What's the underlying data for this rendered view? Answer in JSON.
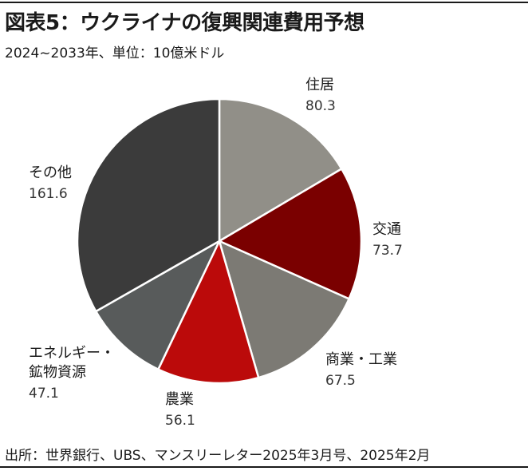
{
  "header": {
    "title": "図表5：ウクライナの復興関連費用予想",
    "subtitle": "2024~2033年、単位：10億米ドル"
  },
  "footer": {
    "source": "出所：世界銀行、UBS、マンスリーレター2025年3月号、2025年2月"
  },
  "chart_data": {
    "type": "pie",
    "start": "12 o'clock",
    "direction": "clockwise",
    "slices": [
      {
        "label": "住居",
        "value": 80.3,
        "display": "80.3",
        "color": "#918f88"
      },
      {
        "label": "交通",
        "value": 73.7,
        "display": "73.7",
        "color": "#7a0000"
      },
      {
        "label": "商業・工業",
        "value": 67.5,
        "display": "67.5",
        "color": "#7c7a74"
      },
      {
        "label": "農業",
        "value": 56.1,
        "display": "56.1",
        "color": "#bb0a0a"
      },
      {
        "label": "エネルギー・鉱物資源",
        "lines": [
          "エネルギー・",
          "鉱物資源"
        ],
        "value": 47.1,
        "display": "47.1",
        "color": "#585b5b"
      },
      {
        "label": "その他",
        "value": 161.6,
        "display": "161.6",
        "color": "#3b3b3b"
      }
    ]
  }
}
